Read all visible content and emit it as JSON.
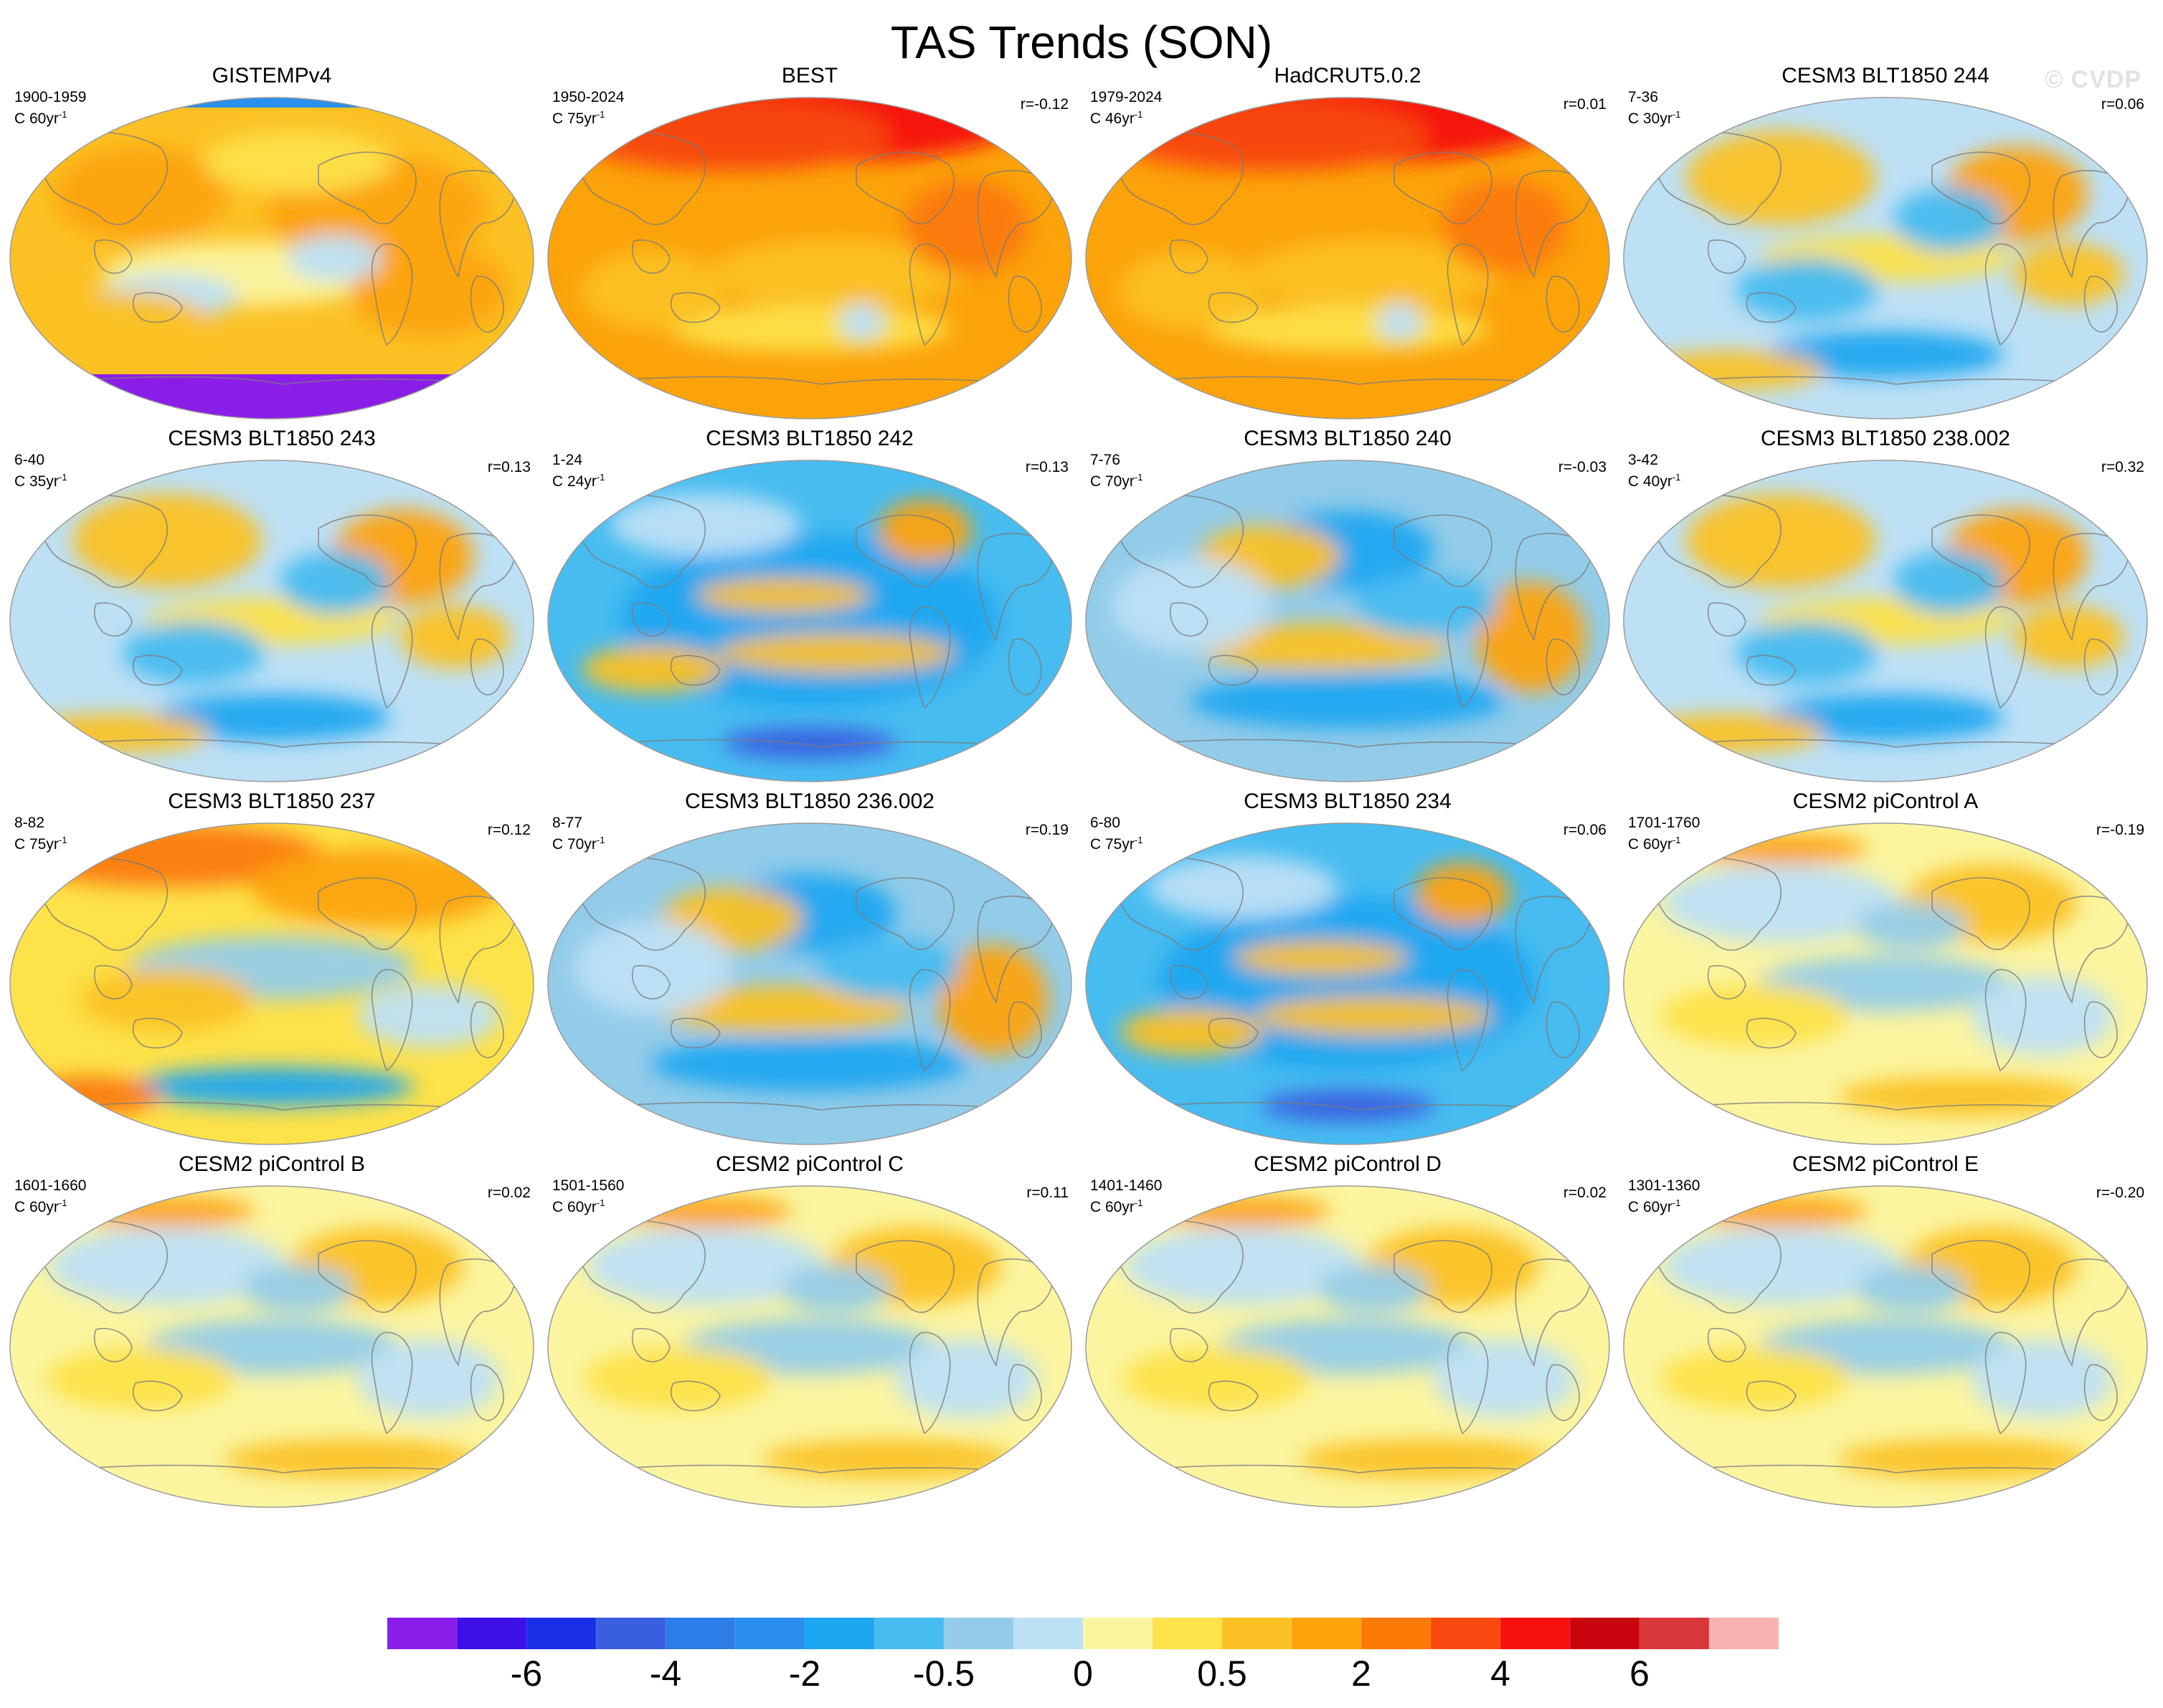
{
  "title": "TAS Trends (SON)",
  "watermark": "© CVDP",
  "chart_data": {
    "type": "map-grid",
    "title": "TAS Trends (SON)",
    "variable": "TAS",
    "season": "SON",
    "projection": "Robinson-like global, Pacific-centered",
    "panels": [
      {
        "title": "GISTEMPv4",
        "years": "1900-1959",
        "units": "C 60yr",
        "r": "",
        "pattern": "obs-gis"
      },
      {
        "title": "BEST",
        "years": "1950-2024",
        "units": "C 75yr",
        "r": "r=-0.12",
        "pattern": "obs-warm"
      },
      {
        "title": "HadCRUT5.0.2",
        "years": "1979-2024",
        "units": "C 46yr",
        "r": "r=0.01",
        "pattern": "obs-warm"
      },
      {
        "title": "CESM3 BLT1850 244",
        "years": "7-36",
        "units": "C 30yr",
        "r": "r=0.06",
        "pattern": "mixed"
      },
      {
        "title": "CESM3 BLT1850 243",
        "years": "6-40",
        "units": "C 35yr",
        "r": "r=0.13",
        "pattern": "mixed"
      },
      {
        "title": "CESM3 BLT1850 242",
        "years": "1-24",
        "units": "C 24yr",
        "r": "r=0.13",
        "pattern": "cool"
      },
      {
        "title": "CESM3 BLT1850 240",
        "years": "7-76",
        "units": "C 70yr",
        "r": "r=-0.03",
        "pattern": "mixed-cool"
      },
      {
        "title": "CESM3 BLT1850 238.002",
        "years": "3-42",
        "units": "C 40yr",
        "r": "r=0.32",
        "pattern": "mixed"
      },
      {
        "title": "CESM3 BLT1850 237",
        "years": "8-82",
        "units": "C 75yr",
        "r": "r=0.12",
        "pattern": "mixed-warm"
      },
      {
        "title": "CESM3 BLT1850 236.002",
        "years": "8-77",
        "units": "C 70yr",
        "r": "r=0.19",
        "pattern": "mixed-cool"
      },
      {
        "title": "CESM3 BLT1850 234",
        "years": "6-80",
        "units": "C 75yr",
        "r": "r=0.06",
        "pattern": "cool"
      },
      {
        "title": "CESM2 piControl A",
        "years": "1701-1760",
        "units": "C 60yr",
        "r": "r=-0.19",
        "pattern": "mild"
      },
      {
        "title": "CESM2 piControl B",
        "years": "1601-1660",
        "units": "C 60yr",
        "r": "r=0.02",
        "pattern": "mild"
      },
      {
        "title": "CESM2 piControl C",
        "years": "1501-1560",
        "units": "C 60yr",
        "r": "r=0.11",
        "pattern": "mild"
      },
      {
        "title": "CESM2 piControl D",
        "years": "1401-1460",
        "units": "C 60yr",
        "r": "r=0.02",
        "pattern": "mild"
      },
      {
        "title": "CESM2 piControl E",
        "years": "1301-1360",
        "units": "C 60yr",
        "r": "r=-0.20",
        "pattern": "mild"
      }
    ],
    "colorbar": {
      "colors": [
        "#8a1ee8",
        "#3d10e8",
        "#1a2ee6",
        "#3a5ee0",
        "#2c7de8",
        "#2a8fee",
        "#1aa6f0",
        "#47bcf0",
        "#93cce9",
        "#bde0f5",
        "#fbf5a0",
        "#fde24a",
        "#fbc124",
        "#fca30a",
        "#fb7a08",
        "#f84a10",
        "#f51110",
        "#c8040f",
        "#d9373a",
        "#f9b2b2"
      ],
      "labels": [
        "-6",
        "-4",
        "-2",
        "-0.5",
        "0",
        "0.5",
        "2",
        "4",
        "6"
      ],
      "label_bins": [
        2,
        4,
        6,
        8,
        10,
        12,
        14,
        16,
        18
      ]
    }
  }
}
